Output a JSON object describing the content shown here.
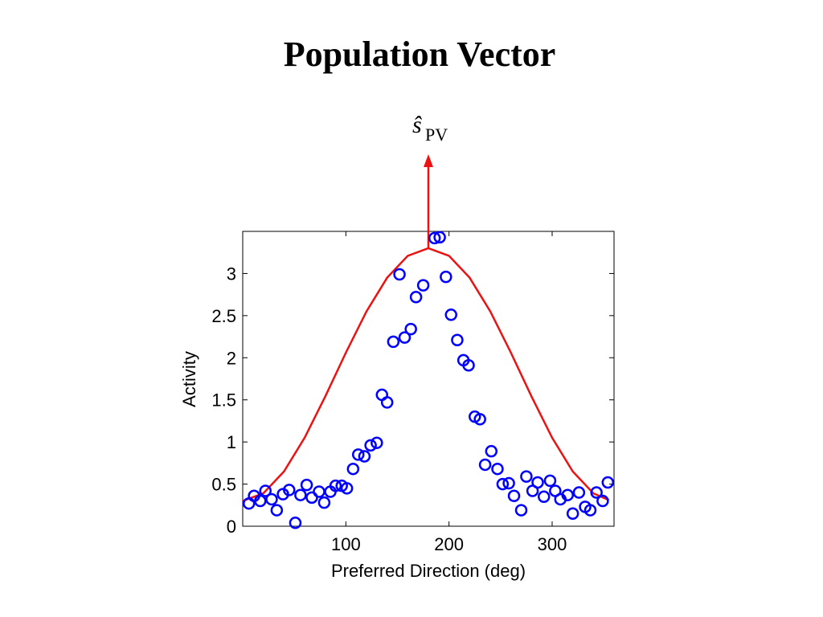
{
  "chart_data": {
    "type": "scatter",
    "title": "Population Vector",
    "title_color": "#ff0000",
    "annotation": {
      "symbol": "ŝ",
      "subscript": "PV",
      "color": "#ee1111"
    },
    "xlabel": "Preferred Direction (deg)",
    "ylabel": "Activity",
    "xlim": [
      0,
      360
    ],
    "ylim": [
      0,
      3.5
    ],
    "xticks": [
      100,
      200,
      300
    ],
    "yticks": [
      0,
      0.5,
      1,
      1.5,
      2,
      2.5,
      3
    ],
    "grid": false,
    "series": [
      {
        "type": "line",
        "color": "#ee1111",
        "x": [
          0,
          20,
          40,
          60,
          80,
          100,
          120,
          140,
          160,
          180,
          200,
          220,
          240,
          260,
          280,
          300,
          320,
          340,
          355
        ],
        "values": [
          0.3,
          0.39,
          0.65,
          1.05,
          1.54,
          2.06,
          2.55,
          2.95,
          3.21,
          3.3,
          3.21,
          2.95,
          2.55,
          2.06,
          1.54,
          1.05,
          0.65,
          0.39,
          0.31
        ]
      },
      {
        "type": "scatter",
        "color": "#0000ff",
        "x": [
          6,
          11,
          17,
          22,
          28,
          33,
          39,
          45,
          51,
          56,
          62,
          67,
          74,
          79,
          85,
          90,
          96,
          101,
          107,
          112,
          118,
          124,
          130,
          135,
          140,
          146,
          152,
          157,
          163,
          168,
          175,
          186,
          191,
          197,
          202,
          208,
          214,
          219,
          225,
          230,
          235,
          241,
          247,
          252,
          258,
          263,
          270,
          275,
          281,
          286,
          292,
          298,
          303,
          308,
          315,
          320,
          326,
          332,
          337,
          343,
          349,
          354
        ],
        "values": [
          0.27,
          0.36,
          0.3,
          0.42,
          0.32,
          0.19,
          0.38,
          0.43,
          0.04,
          0.37,
          0.49,
          0.34,
          0.41,
          0.28,
          0.41,
          0.48,
          0.48,
          0.45,
          0.68,
          0.85,
          0.83,
          0.96,
          0.99,
          1.56,
          1.47,
          2.19,
          2.99,
          2.24,
          2.34,
          2.72,
          2.86,
          3.42,
          3.43,
          2.96,
          2.51,
          2.21,
          1.97,
          1.91,
          1.3,
          1.27,
          0.73,
          0.89,
          0.68,
          0.5,
          0.51,
          0.36,
          0.19,
          0.59,
          0.42,
          0.52,
          0.35,
          0.54,
          0.42,
          0.32,
          0.37,
          0.15,
          0.4,
          0.23,
          0.19,
          0.4,
          0.3,
          0.52
        ]
      }
    ]
  }
}
